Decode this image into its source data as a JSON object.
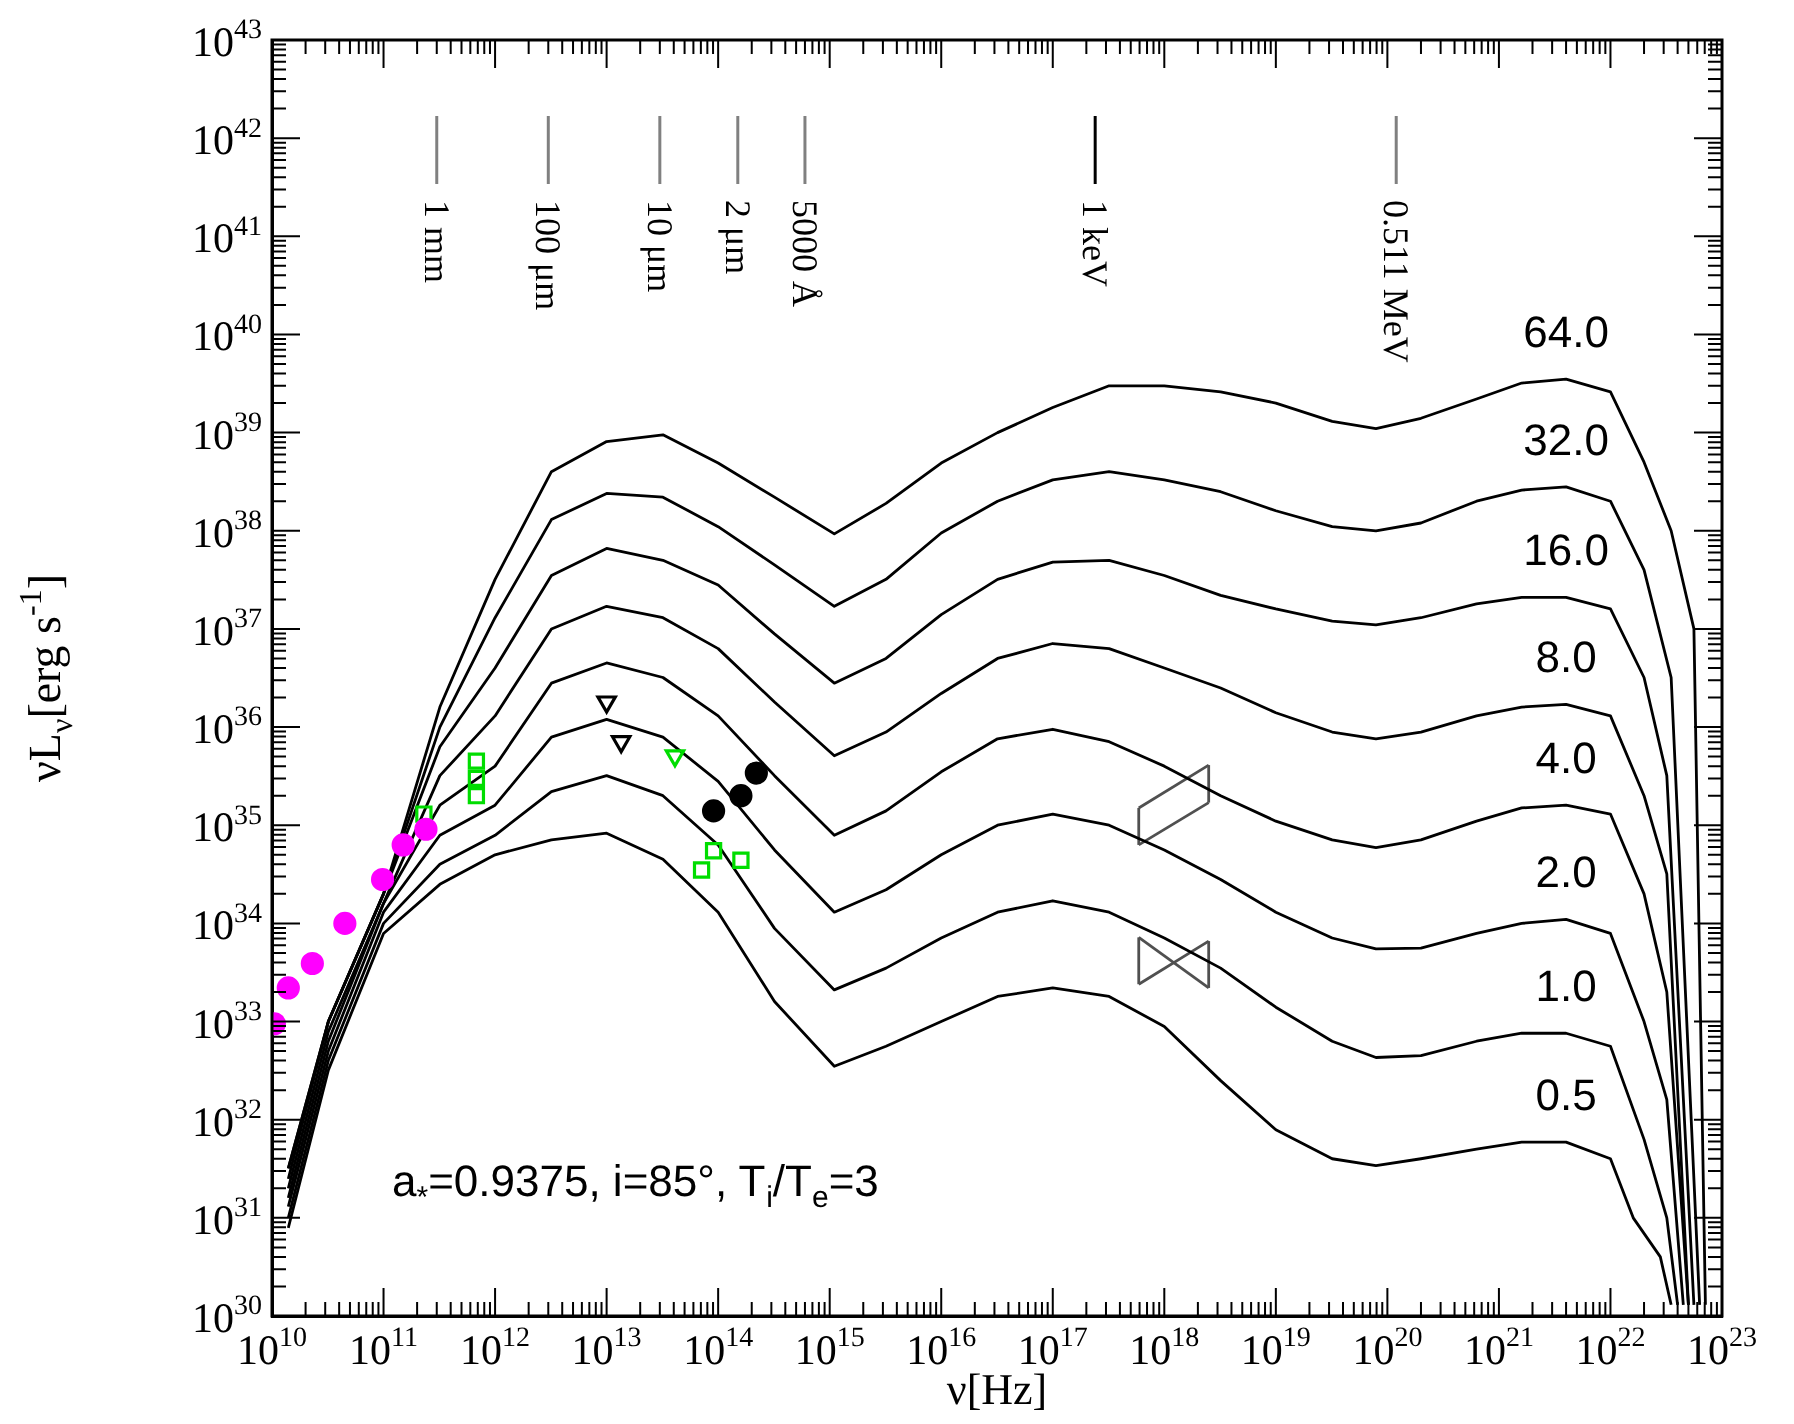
{
  "chart_data": {
    "type": "line",
    "xlabel": "ν[Hz]",
    "ylabel": "νL$_{ν}$[erg s$^{-1}$]",
    "log": "xy",
    "legend": "right",
    "xlim": [
      10000000000.0,
      1e+23
    ],
    "ylim": [
      1e+30,
      1e+43
    ],
    "xticks": [
      {
        "value": 10000000000.0,
        "label": "10$^{10}$"
      },
      {
        "value": 100000000000.0,
        "label": "10$^{11}$"
      },
      {
        "value": 1000000000000.0,
        "label": "10$^{12}$"
      },
      {
        "value": 10000000000000.0,
        "label": "10$^{13}$"
      },
      {
        "value": 100000000000000.0,
        "label": "10$^{14}$"
      },
      {
        "value": 1000000000000000.0,
        "label": "10$^{15}$"
      },
      {
        "value": 1e+16,
        "label": "10$^{16}$"
      },
      {
        "value": 1e+17,
        "label": "10$^{17}$"
      },
      {
        "value": 1e+18,
        "label": "10$^{18}$"
      },
      {
        "value": 1e+19,
        "label": "10$^{19}$"
      },
      {
        "value": 1e+20,
        "label": "10$^{20}$"
      },
      {
        "value": 1e+21,
        "label": "10$^{21}$"
      },
      {
        "value": 1e+22,
        "label": "10$^{22}$"
      },
      {
        "value": 1e+23,
        "label": "10$^{23}$"
      }
    ],
    "yticks": [
      {
        "value": 1e+30,
        "label": "10$^{30}$"
      },
      {
        "value": 1e+31,
        "label": "10$^{31}$"
      },
      {
        "value": 1e+32,
        "label": "10$^{32}$"
      },
      {
        "value": 1e+33,
        "label": "10$^{33}$"
      },
      {
        "value": 1e+34,
        "label": "10$^{34}$"
      },
      {
        "value": 1e+35,
        "label": "10$^{35}$"
      },
      {
        "value": 1e+36,
        "label": "10$^{36}$"
      },
      {
        "value": 1e+37,
        "label": "10$^{37}$"
      },
      {
        "value": 1e+38,
        "label": "10$^{38}$"
      },
      {
        "value": 1e+39,
        "label": "10$^{39}$"
      },
      {
        "value": 1e+40,
        "label": "10$^{40}$"
      },
      {
        "value": 1e+41,
        "label": "10$^{41}$"
      },
      {
        "value": 1e+42,
        "label": "10$^{42}$"
      },
      {
        "value": 1e+43,
        "label": "10$^{43}$"
      }
    ],
    "annotations": [
      "a$_{*}$=0.9375, i=85°, T$_{i}$/T$_{e}$=3"
    ],
    "ref_lines": [
      {
        "axis": "x",
        "value": 300000000000.0,
        "label": "1 mm",
        "color": "#808080"
      },
      {
        "axis": "x",
        "value": 3000000000000.0,
        "label": "100 μm",
        "color": "#808080"
      },
      {
        "axis": "x",
        "value": 30000000000000.0,
        "label": "10 μm",
        "color": "#808080"
      },
      {
        "axis": "x",
        "value": 150000000000000.0,
        "label": "2 μm",
        "color": "#808080"
      },
      {
        "axis": "x",
        "value": 600000000000000.0,
        "label": "5000 Å",
        "color": "#808080"
      },
      {
        "axis": "x",
        "value": 2.4e+17,
        "label": "1 keV",
        "color": "#000000"
      },
      {
        "axis": "x",
        "value": 1.2e+20,
        "label": "0.511 MeV",
        "color": "#808080"
      }
    ],
    "series": [
      {
        "name": "64.0",
        "color": "#000000",
        "x": [
          14000000000.0,
          32000000000.0,
          100000000000.0,
          320000000000.0,
          1000000000000.0,
          3200000000000.0,
          10000000000000.0,
          32000000000000.0,
          100000000000000.0,
          320000000000000.0,
          1100000000000000.0,
          3200000000000000.0,
          1e+16,
          3.2e+16,
          1e+17,
          3.2e+17,
          1e+18,
          3.2e+18,
          1e+19,
          3.2e+19,
          7.9e+19,
          2e+20,
          6.3e+20,
          1.6e+21,
          4e+21,
          1e+22,
          2e+22,
          3.5e+22,
          5.6e+22,
          7.1e+22
        ],
        "values": [
          3.2e+31,
          1e+33,
          2e+34,
          1.6e+36,
          3.2e+37,
          4e+38,
          8.1e+38,
          9.5e+38,
          4.9e+38,
          2.2e+38,
          9.3e+37,
          1.9e+38,
          4.9e+38,
          1e+39,
          1.8e+39,
          3e+39,
          3e+39,
          2.6e+39,
          2e+39,
          1.3e+39,
          1.1e+39,
          1.4e+39,
          2.2e+39,
          3.2e+39,
          3.5e+39,
          2.6e+39,
          5e+38,
          1e+38,
          1e+37,
          1.3e+30
        ]
      },
      {
        "name": "32.0",
        "color": "#000000",
        "x": [
          14000000000.0,
          32000000000.0,
          100000000000.0,
          320000000000.0,
          1000000000000.0,
          3200000000000.0,
          10000000000000.0,
          32000000000000.0,
          100000000000000.0,
          320000000000000.0,
          1100000000000000.0,
          3200000000000000.0,
          1e+16,
          3.2e+16,
          1e+17,
          3.2e+17,
          1e+18,
          3.2e+18,
          1e+19,
          3.2e+19,
          7.9e+19,
          2e+20,
          6.3e+20,
          1.6e+21,
          4e+21,
          1e+22,
          2e+22,
          3.5e+22,
          6.3e+22
        ],
        "values": [
          3.2e+31,
          1e+33,
          2e+34,
          1e+36,
          1.3e+37,
          1.3e+38,
          2.4e+38,
          2.2e+38,
          1.1e+38,
          4.5e+37,
          1.7e+37,
          3.2e+37,
          9.5e+37,
          2e+38,
          3.3e+38,
          4e+38,
          3.3e+38,
          2.5e+38,
          1.6e+38,
          1.1e+38,
          1e+38,
          1.2e+38,
          2e+38,
          2.6e+38,
          2.8e+38,
          2e+38,
          4e+37,
          3.2e+36,
          1.3e+30
        ]
      },
      {
        "name": "16.0",
        "color": "#000000",
        "x": [
          14000000000.0,
          32000000000.0,
          100000000000.0,
          320000000000.0,
          1000000000000.0,
          3200000000000.0,
          10000000000000.0,
          32000000000000.0,
          100000000000000.0,
          320000000000000.0,
          1100000000000000.0,
          3200000000000000.0,
          1e+16,
          3.2e+16,
          1e+17,
          3.2e+17,
          1e+18,
          3.2e+18,
          1e+19,
          3.2e+19,
          7.9e+19,
          2e+20,
          6.3e+20,
          1.6e+21,
          4e+21,
          1e+22,
          2e+22,
          3.2e+22,
          5.6e+22
        ],
        "values": [
          2.5e+31,
          1e+33,
          2e+34,
          6.3e+35,
          4e+36,
          3.5e+37,
          6.6e+37,
          5e+37,
          2.8e+37,
          8.9e+36,
          2.8e+36,
          5e+36,
          1.4e+37,
          3.2e+37,
          4.8e+37,
          5e+37,
          3.5e+37,
          2.2e+37,
          1.6e+37,
          1.2e+37,
          1.1e+37,
          1.3e+37,
          1.8e+37,
          2.1e+37,
          2.1e+37,
          1.6e+37,
          3.2e+36,
          3.2e+35,
          1.3e+30
        ]
      },
      {
        "name": "8.0",
        "color": "#000000",
        "x": [
          14000000000.0,
          32000000000.0,
          100000000000.0,
          320000000000.0,
          1000000000000.0,
          3200000000000.0,
          10000000000000.0,
          32000000000000.0,
          100000000000000.0,
          320000000000000.0,
          1100000000000000.0,
          3200000000000000.0,
          1e+16,
          3.2e+16,
          1e+17,
          3.2e+17,
          1e+18,
          3.2e+18,
          1e+19,
          3.2e+19,
          7.9e+19,
          2e+20,
          6.3e+20,
          1.6e+21,
          4e+21,
          1e+22,
          2e+22,
          3.2e+22,
          5e+22
        ],
        "values": [
          2e+31,
          7.9e+32,
          1.6e+34,
          3.2e+35,
          1.3e+36,
          1e+37,
          1.7e+37,
          1.3e+37,
          6.3e+36,
          1.8e+36,
          5.1e+35,
          8.9e+35,
          2.2e+36,
          5e+36,
          7.1e+36,
          6.3e+36,
          4e+36,
          2.5e+36,
          1.4e+36,
          8.9e+35,
          7.6e+35,
          8.9e+35,
          1.3e+36,
          1.6e+36,
          1.7e+36,
          1.3e+36,
          2e+35,
          3.2e+34,
          1.3e+30
        ]
      },
      {
        "name": "4.0",
        "color": "#000000",
        "x": [
          14000000000.0,
          32000000000.0,
          100000000000.0,
          320000000000.0,
          1000000000000.0,
          3200000000000.0,
          10000000000000.0,
          32000000000000.0,
          100000000000000.0,
          320000000000000.0,
          1100000000000000.0,
          3200000000000000.0,
          1e+16,
          3.2e+16,
          1e+17,
          3.2e+17,
          1e+18,
          3.2e+18,
          1e+19,
          3.2e+19,
          7.9e+19,
          2e+20,
          6.3e+20,
          1.6e+21,
          4e+21,
          1e+22,
          2e+22,
          3.2e+22,
          5e+22
        ],
        "values": [
          1.6e+31,
          6.3e+32,
          1.6e+34,
          1.6e+35,
          4e+35,
          2.8e+36,
          4.5e+36,
          3.2e+36,
          1.3e+36,
          3.2e+35,
          7.9e+34,
          1.4e+35,
          3.5e+35,
          7.6e+35,
          9.5e+35,
          7.1e+35,
          4e+35,
          2e+35,
          1.1e+35,
          7.1e+34,
          5.9e+34,
          7.1e+34,
          1.1e+35,
          1.5e+35,
          1.6e+35,
          1.3e+35,
          2e+34,
          2e+33,
          1.3e+30
        ]
      },
      {
        "name": "2.0",
        "color": "#000000",
        "x": [
          14000000000.0,
          32000000000.0,
          100000000000.0,
          320000000000.0,
          1000000000000.0,
          3200000000000.0,
          10000000000000.0,
          32000000000000.0,
          100000000000000.0,
          320000000000000.0,
          1100000000000000.0,
          3200000000000000.0,
          1e+16,
          3.2e+16,
          1e+17,
          3.2e+17,
          1e+18,
          3.2e+18,
          1e+19,
          3.2e+19,
          7.9e+19,
          2e+20,
          6.3e+20,
          1.6e+21,
          4e+21,
          1e+22,
          2e+22,
          3.2e+22,
          4.5e+22
        ],
        "values": [
          1.3e+31,
          5e+32,
          1.3e+34,
          7.9e+34,
          1.6e+35,
          7.9e+35,
          1.2e+36,
          7.9e+35,
          2.8e+35,
          5.6e+34,
          1.3e+34,
          2.2e+34,
          5e+34,
          1e+35,
          1.3e+35,
          1e+35,
          5.6e+34,
          2.8e+34,
          1.3e+34,
          7.1e+33,
          5.5e+33,
          5.6e+33,
          7.9e+33,
          1e+34,
          1.1e+34,
          7.9e+33,
          1e+33,
          1.6e+32,
          1.3e+30
        ]
      },
      {
        "name": "1.0",
        "color": "#000000",
        "x": [
          14000000000.0,
          32000000000.0,
          100000000000.0,
          320000000000.0,
          1000000000000.0,
          3200000000000.0,
          10000000000000.0,
          32000000000000.0,
          100000000000000.0,
          320000000000000.0,
          1100000000000000.0,
          3200000000000000.0,
          1e+16,
          3.2e+16,
          1e+17,
          3.2e+17,
          1e+18,
          3.2e+18,
          1e+19,
          3.2e+19,
          7.9e+19,
          2e+20,
          6.3e+20,
          1.6e+21,
          4e+21,
          1e+22,
          2e+22,
          3.2e+22,
          4e+22
        ],
        "values": [
          1e+31,
          4e+32,
          1e+34,
          4e+34,
          7.9e+34,
          2.2e+35,
          3.2e+35,
          2e+35,
          6.3e+34,
          8.9e+33,
          2.1e+33,
          3.5e+33,
          7.1e+33,
          1.3e+34,
          1.7e+34,
          1.3e+34,
          7.1e+33,
          3.5e+33,
          1.4e+33,
          6.3e+32,
          4.3e+32,
          4.5e+32,
          6.3e+32,
          7.6e+32,
          7.6e+32,
          5.6e+32,
          6.3e+31,
          1e+31,
          1.3e+30
        ]
      },
      {
        "name": "0.5",
        "color": "#000000",
        "x": [
          14000000000.0,
          32000000000.0,
          100000000000.0,
          320000000000.0,
          1000000000000.0,
          3200000000000.0,
          10000000000000.0,
          32000000000000.0,
          100000000000000.0,
          320000000000000.0,
          1100000000000000.0,
          3200000000000000.0,
          1e+16,
          3.2e+16,
          1e+17,
          3.2e+17,
          1e+18,
          3.2e+18,
          1e+19,
          3.2e+19,
          7.9e+19,
          2e+20,
          6.3e+20,
          1.6e+21,
          4e+21,
          1e+22,
          1.6e+22,
          2.8e+22,
          3.5e+22
        ],
        "values": [
          7.9e+30,
          3.2e+32,
          7.9e+33,
          2.5e+34,
          5e+34,
          7.1e+34,
          8.3e+34,
          4.5e+34,
          1.3e+34,
          1.6e+33,
          3.5e+32,
          5.6e+32,
          1e+33,
          1.8e+33,
          2.2e+33,
          1.8e+33,
          8.9e+32,
          2.5e+32,
          7.9e+31,
          4e+31,
          3.4e+31,
          4e+31,
          5e+31,
          5.9e+31,
          5.9e+31,
          4e+31,
          1e+31,
          4e+30,
          1.3e+30
        ]
      },
      {
        "type": "line",
        "color": "#505050",
        "marker": "none",
        "x": [
          5.9e+17,
          2.5e+18
        ],
        "values": [
          1.5e+35,
          4.1e+35
        ]
      },
      {
        "type": "line",
        "color": "#505050",
        "marker": "none",
        "x": [
          5.9e+17,
          2.5e+18
        ],
        "values": [
          6.3e+34,
          1.7e+35
        ]
      },
      {
        "type": "line",
        "color": "#505050",
        "marker": "none",
        "x": [
          5.9e+17,
          5.9e+17
        ],
        "values": [
          6.3e+34,
          1.5e+35
        ]
      },
      {
        "type": "line",
        "color": "#505050",
        "marker": "none",
        "x": [
          2.5e+18,
          2.5e+18
        ],
        "values": [
          1.7e+35,
          4.1e+35
        ]
      },
      {
        "type": "line",
        "color": "#505050",
        "marker": "none",
        "x": [
          5.9e+17,
          2.5e+18
        ],
        "values": [
          7.2e+33,
          2.2e+33
        ]
      },
      {
        "type": "line",
        "color": "#505050",
        "marker": "none",
        "x": [
          5.9e+17,
          2.5e+18
        ],
        "values": [
          2.4e+33,
          6.6e+33
        ]
      },
      {
        "type": "line",
        "color": "#505050",
        "marker": "none",
        "x": [
          5.9e+17,
          5.9e+17
        ],
        "values": [
          2.4e+33,
          7.2e+33
        ]
      },
      {
        "type": "line",
        "color": "#505050",
        "marker": "none",
        "x": [
          2.5e+18,
          2.5e+18
        ],
        "values": [
          2.2e+33,
          6.6e+33
        ]
      },
      {
        "type": "scatter",
        "color": "#ff00ff",
        "marker": "circle",
        "x": [
          10500000000.0,
          14000000000.0,
          23000000000.0,
          45000000000.0,
          98000000000.0,
          150000000000.0,
          240000000000.0
        ],
        "values": [
          9.5e+32,
          2.2e+33,
          3.9e+33,
          1e+34,
          2.8e+34,
          6.3e+34,
          9.1e+34
        ]
      },
      {
        "type": "scatter",
        "color": "#00dd00",
        "marker": "square",
        "x": [
          230000000000.0,
          680000000000.0,
          680000000000.0,
          680000000000.0,
          71000000000000.0,
          91000000000000.0,
          160000000000000.0
        ],
        "values": [
          1.3e+35,
          4.5e+35,
          3e+35,
          2e+35,
          3.5e+34,
          5.5e+34,
          4.4e+34
        ]
      },
      {
        "type": "scatter",
        "color": "#000000",
        "marker": "circle",
        "x": [
          91000000000000.0,
          160000000000000.0,
          220000000000000.0
        ],
        "values": [
          1.4e+35,
          2e+35,
          3.4e+35
        ]
      },
      {
        "type": "scatter",
        "color": "#000000",
        "marker": "triangle",
        "x": [
          10000000000000.0,
          13500000000000.0
        ],
        "values": [
          1.8e+36,
          7.1e+35
        ]
      },
      {
        "type": "scatter",
        "color": "#00dd00",
        "marker": "triangle",
        "x": [
          41000000000000.0
        ],
        "values": [
          5.1e+35
        ]
      }
    ]
  }
}
